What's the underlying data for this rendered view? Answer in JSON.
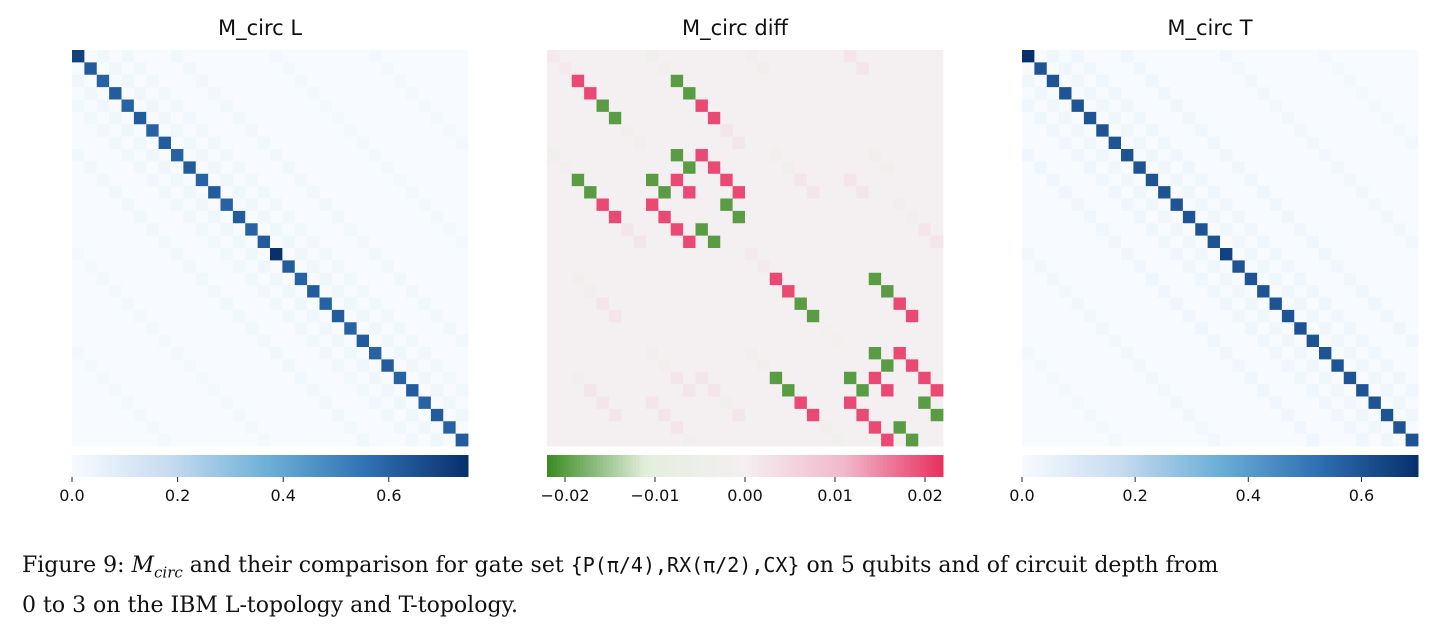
{
  "chart_data": [
    {
      "type": "heatmap",
      "title": "M_circ L",
      "matrix_size": 32,
      "colormap": [
        "#f7fbff",
        "#c6dbef",
        "#6baed6",
        "#2f6fb3",
        "#08306b"
      ],
      "colorbar": {
        "range": [
          0.0,
          0.75
        ],
        "ticks": [
          0.0,
          0.2,
          0.4,
          0.6
        ],
        "tick_labels": [
          "0.0",
          "0.2",
          "0.4",
          "0.6"
        ]
      },
      "diagonal_values": [
        0.7,
        0.62,
        0.6,
        0.62,
        0.6,
        0.62,
        0.6,
        0.62,
        0.6,
        0.62,
        0.6,
        0.62,
        0.6,
        0.62,
        0.6,
        0.62,
        0.75,
        0.62,
        0.6,
        0.62,
        0.6,
        0.62,
        0.6,
        0.62,
        0.6,
        0.62,
        0.6,
        0.62,
        0.6,
        0.62,
        0.6,
        0.62
      ],
      "off_diagonal_values": [
        {
          "offset": 2,
          "value": 0.03
        },
        {
          "offset": -2,
          "value": 0.03
        },
        {
          "offset": 4,
          "value": 0.025
        },
        {
          "offset": -4,
          "value": 0.025
        },
        {
          "offset": 8,
          "value": 0.025
        },
        {
          "offset": -8,
          "value": 0.025
        },
        {
          "offset": 16,
          "value": 0.02
        },
        {
          "offset": -16,
          "value": 0.02
        },
        {
          "offset": 24,
          "value": 0.015
        },
        {
          "offset": -24,
          "value": 0.015
        }
      ]
    },
    {
      "type": "heatmap",
      "title": "M_circ diff",
      "matrix_size": 32,
      "colormap": [
        "#3a8a22",
        "#e2efdc",
        "#f4eff1",
        "#f0b8cb",
        "#e8305e"
      ],
      "colorbar": {
        "range": [
          -0.022,
          0.022
        ],
        "ticks": [
          -0.02,
          -0.01,
          0.0,
          0.01,
          0.02
        ],
        "tick_labels": [
          "−0.02",
          "−0.01",
          "0.00",
          "0.01",
          "0.02"
        ]
      },
      "strong_cells": [
        {
          "row": 2,
          "col": 2,
          "value": 0.02
        },
        {
          "row": 3,
          "col": 3,
          "value": 0.02
        },
        {
          "row": 4,
          "col": 4,
          "value": -0.02
        },
        {
          "row": 5,
          "col": 5,
          "value": -0.02
        },
        {
          "row": 2,
          "col": 10,
          "value": -0.02
        },
        {
          "row": 3,
          "col": 11,
          "value": -0.02
        },
        {
          "row": 4,
          "col": 12,
          "value": 0.02
        },
        {
          "row": 5,
          "col": 13,
          "value": 0.02
        },
        {
          "row": 10,
          "col": 2,
          "value": -0.02
        },
        {
          "row": 11,
          "col": 3,
          "value": -0.02
        },
        {
          "row": 12,
          "col": 4,
          "value": 0.02
        },
        {
          "row": 13,
          "col": 5,
          "value": 0.02
        },
        {
          "row": 8,
          "col": 10,
          "value": -0.02
        },
        {
          "row": 9,
          "col": 11,
          "value": -0.02
        },
        {
          "row": 10,
          "col": 8,
          "value": -0.02
        },
        {
          "row": 11,
          "col": 9,
          "value": -0.02
        },
        {
          "row": 14,
          "col": 12,
          "value": -0.02
        },
        {
          "row": 15,
          "col": 13,
          "value": -0.02
        },
        {
          "row": 12,
          "col": 14,
          "value": -0.02
        },
        {
          "row": 13,
          "col": 15,
          "value": -0.02
        },
        {
          "row": 8,
          "col": 12,
          "value": 0.02
        },
        {
          "row": 9,
          "col": 13,
          "value": 0.02
        },
        {
          "row": 10,
          "col": 14,
          "value": 0.02
        },
        {
          "row": 11,
          "col": 15,
          "value": 0.02
        },
        {
          "row": 10,
          "col": 10,
          "value": 0.02
        },
        {
          "row": 11,
          "col": 11,
          "value": 0.02
        },
        {
          "row": 12,
          "col": 8,
          "value": 0.02
        },
        {
          "row": 13,
          "col": 9,
          "value": 0.02
        },
        {
          "row": 14,
          "col": 10,
          "value": 0.02
        },
        {
          "row": 15,
          "col": 11,
          "value": 0.02
        },
        {
          "row": 18,
          "col": 18,
          "value": 0.02
        },
        {
          "row": 19,
          "col": 19,
          "value": 0.02
        },
        {
          "row": 20,
          "col": 20,
          "value": -0.02
        },
        {
          "row": 21,
          "col": 21,
          "value": -0.02
        },
        {
          "row": 18,
          "col": 26,
          "value": -0.02
        },
        {
          "row": 19,
          "col": 27,
          "value": -0.02
        },
        {
          "row": 20,
          "col": 28,
          "value": 0.02
        },
        {
          "row": 21,
          "col": 29,
          "value": 0.02
        },
        {
          "row": 26,
          "col": 18,
          "value": -0.02
        },
        {
          "row": 27,
          "col": 19,
          "value": -0.02
        },
        {
          "row": 28,
          "col": 20,
          "value": 0.02
        },
        {
          "row": 29,
          "col": 21,
          "value": 0.02
        },
        {
          "row": 24,
          "col": 26,
          "value": -0.02
        },
        {
          "row": 25,
          "col": 27,
          "value": -0.02
        },
        {
          "row": 26,
          "col": 24,
          "value": -0.02
        },
        {
          "row": 27,
          "col": 25,
          "value": -0.02
        },
        {
          "row": 30,
          "col": 28,
          "value": -0.02
        },
        {
          "row": 31,
          "col": 29,
          "value": -0.02
        },
        {
          "row": 28,
          "col": 30,
          "value": -0.02
        },
        {
          "row": 29,
          "col": 31,
          "value": -0.02
        },
        {
          "row": 24,
          "col": 28,
          "value": 0.02
        },
        {
          "row": 25,
          "col": 29,
          "value": 0.02
        },
        {
          "row": 26,
          "col": 30,
          "value": 0.02
        },
        {
          "row": 27,
          "col": 31,
          "value": 0.02
        },
        {
          "row": 26,
          "col": 26,
          "value": 0.02
        },
        {
          "row": 27,
          "col": 27,
          "value": 0.02
        },
        {
          "row": 28,
          "col": 24,
          "value": 0.02
        },
        {
          "row": 29,
          "col": 25,
          "value": 0.02
        },
        {
          "row": 30,
          "col": 26,
          "value": 0.02
        },
        {
          "row": 31,
          "col": 27,
          "value": 0.02
        }
      ],
      "faint_cells": [
        {
          "row": 0,
          "col": 0,
          "value": 0.001
        },
        {
          "row": 1,
          "col": 1,
          "value": 0.001
        },
        {
          "row": 6,
          "col": 6,
          "value": -0.002
        },
        {
          "row": 7,
          "col": 7,
          "value": -0.002
        },
        {
          "row": 0,
          "col": 8,
          "value": -0.002
        },
        {
          "row": 1,
          "col": 9,
          "value": -0.002
        },
        {
          "row": 6,
          "col": 14,
          "value": 0.002
        },
        {
          "row": 7,
          "col": 15,
          "value": 0.002
        },
        {
          "row": 0,
          "col": 16,
          "value": -0.002
        },
        {
          "row": 1,
          "col": 17,
          "value": -0.002
        },
        {
          "row": 0,
          "col": 24,
          "value": 0.002
        },
        {
          "row": 1,
          "col": 25,
          "value": 0.002
        },
        {
          "row": 8,
          "col": 0,
          "value": -0.002
        },
        {
          "row": 9,
          "col": 1,
          "value": -0.002
        },
        {
          "row": 14,
          "col": 6,
          "value": 0.002
        },
        {
          "row": 15,
          "col": 7,
          "value": 0.002
        },
        {
          "row": 8,
          "col": 18,
          "value": -0.002
        },
        {
          "row": 9,
          "col": 19,
          "value": -0.002
        },
        {
          "row": 10,
          "col": 20,
          "value": 0.002
        },
        {
          "row": 11,
          "col": 21,
          "value": 0.002
        },
        {
          "row": 8,
          "col": 26,
          "value": -0.002
        },
        {
          "row": 9,
          "col": 27,
          "value": -0.002
        },
        {
          "row": 10,
          "col": 24,
          "value": 0.002
        },
        {
          "row": 11,
          "col": 25,
          "value": 0.002
        },
        {
          "row": 12,
          "col": 28,
          "value": -0.002
        },
        {
          "row": 13,
          "col": 29,
          "value": -0.002
        },
        {
          "row": 14,
          "col": 30,
          "value": 0.002
        },
        {
          "row": 15,
          "col": 31,
          "value": 0.002
        },
        {
          "row": 18,
          "col": 2,
          "value": -0.002
        },
        {
          "row": 19,
          "col": 3,
          "value": -0.002
        },
        {
          "row": 20,
          "col": 4,
          "value": 0.002
        },
        {
          "row": 21,
          "col": 5,
          "value": 0.002
        },
        {
          "row": 24,
          "col": 8,
          "value": -0.002
        },
        {
          "row": 25,
          "col": 9,
          "value": -0.002
        },
        {
          "row": 26,
          "col": 10,
          "value": 0.002
        },
        {
          "row": 27,
          "col": 11,
          "value": 0.002
        },
        {
          "row": 26,
          "col": 2,
          "value": -0.002
        },
        {
          "row": 27,
          "col": 3,
          "value": 0.002
        },
        {
          "row": 28,
          "col": 4,
          "value": 0.002
        },
        {
          "row": 29,
          "col": 5,
          "value": 0.002
        },
        {
          "row": 28,
          "col": 8,
          "value": 0.002
        },
        {
          "row": 29,
          "col": 9,
          "value": 0.002
        },
        {
          "row": 30,
          "col": 10,
          "value": 0.002
        },
        {
          "row": 31,
          "col": 11,
          "value": -0.002
        },
        {
          "row": 26,
          "col": 12,
          "value": 0.002
        },
        {
          "row": 27,
          "col": 13,
          "value": 0.002
        },
        {
          "row": 28,
          "col": 14,
          "value": -0.002
        },
        {
          "row": 29,
          "col": 15,
          "value": 0.002
        },
        {
          "row": 24,
          "col": 16,
          "value": -0.002
        },
        {
          "row": 25,
          "col": 17,
          "value": -0.002
        },
        {
          "row": 30,
          "col": 22,
          "value": -0.002
        },
        {
          "row": 31,
          "col": 23,
          "value": -0.002
        },
        {
          "row": 16,
          "col": 16,
          "value": 0.001
        },
        {
          "row": 17,
          "col": 17,
          "value": 0.001
        },
        {
          "row": 22,
          "col": 22,
          "value": -0.001
        },
        {
          "row": 23,
          "col": 23,
          "value": -0.001
        }
      ]
    },
    {
      "type": "heatmap",
      "title": "M_circ T",
      "matrix_size": 32,
      "colormap": [
        "#f7fbff",
        "#c6dbef",
        "#6baed6",
        "#2f6fb3",
        "#08306b"
      ],
      "colorbar": {
        "range": [
          0.0,
          0.7
        ],
        "ticks": [
          0.0,
          0.2,
          0.4,
          0.6
        ],
        "tick_labels": [
          "0.0",
          "0.2",
          "0.4",
          "0.6"
        ]
      },
      "diagonal_values": [
        0.7,
        0.6,
        0.6,
        0.6,
        0.6,
        0.6,
        0.6,
        0.6,
        0.6,
        0.6,
        0.6,
        0.6,
        0.6,
        0.6,
        0.6,
        0.6,
        0.65,
        0.6,
        0.6,
        0.6,
        0.6,
        0.6,
        0.6,
        0.6,
        0.6,
        0.6,
        0.6,
        0.6,
        0.6,
        0.6,
        0.6,
        0.6
      ],
      "off_diagonal_values": [
        {
          "offset": 2,
          "value": 0.03
        },
        {
          "offset": -2,
          "value": 0.03
        },
        {
          "offset": 4,
          "value": 0.025
        },
        {
          "offset": -4,
          "value": 0.025
        },
        {
          "offset": 8,
          "value": 0.025
        },
        {
          "offset": -8,
          "value": 0.025
        },
        {
          "offset": 16,
          "value": 0.02
        },
        {
          "offset": -16,
          "value": 0.02
        },
        {
          "offset": 24,
          "value": 0.015
        },
        {
          "offset": -24,
          "value": 0.015
        }
      ]
    }
  ],
  "caption": {
    "prefix": "Figure 9: ",
    "m": "M",
    "m_sub": "circ",
    "part1": " and their comparison for gate set ",
    "gate_set": "{P(π/4),RX(π/2),CX}",
    "part2": " on 5 qubits and of circuit depth from",
    "line2": "0 to 3 on the IBM L-topology and T-topology."
  }
}
